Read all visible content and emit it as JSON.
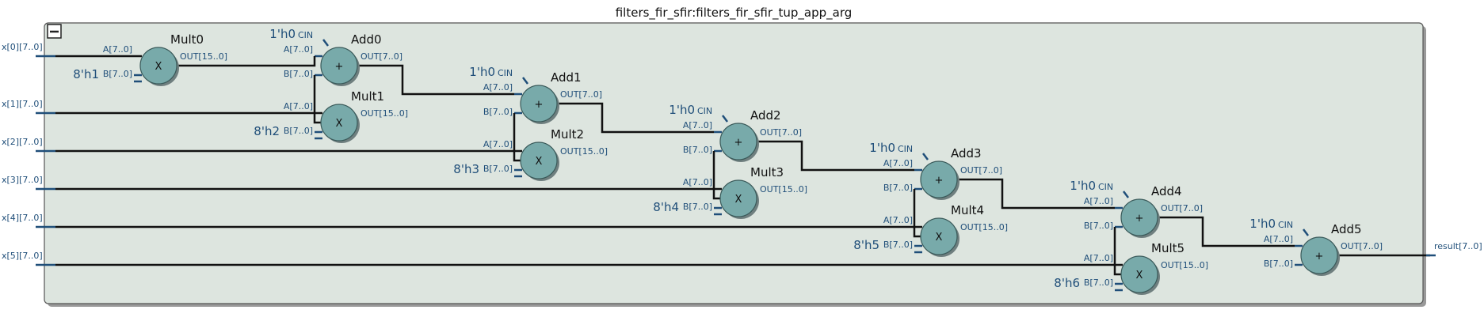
{
  "title": "filters_fir_sfir:filters_fir_sfir_tup_app_arg",
  "collapse_glyph": "−",
  "inputs": [
    "x[0][7..0]",
    "x[1][7..0]",
    "x[2][7..0]",
    "x[3][7..0]",
    "x[4][7..0]",
    "x[5][7..0]"
  ],
  "output": "result[7..0]",
  "mults": [
    {
      "name": "Mult0",
      "const": "8'h1"
    },
    {
      "name": "Mult1",
      "const": "8'h2"
    },
    {
      "name": "Mult2",
      "const": "8'h3"
    },
    {
      "name": "Mult3",
      "const": "8'h4"
    },
    {
      "name": "Mult4",
      "const": "8'h5"
    },
    {
      "name": "Mult5",
      "const": "8'h6"
    }
  ],
  "adders": [
    {
      "name": "Add0",
      "cin": "1'h0"
    },
    {
      "name": "Add1",
      "cin": "1'h0"
    },
    {
      "name": "Add2",
      "cin": "1'h0"
    },
    {
      "name": "Add3",
      "cin": "1'h0"
    },
    {
      "name": "Add4",
      "cin": "1'h0"
    },
    {
      "name": "Add5",
      "cin": "1'h0"
    }
  ],
  "port_labels": {
    "a": "A[7..0]",
    "b": "B[7..0]",
    "mult_out": "OUT[15..0]",
    "add_out": "OUT[7..0]",
    "cin": "CIN"
  },
  "symbols": {
    "mult": "X",
    "add": "+"
  },
  "colors": {
    "block_fill": "#dde5df",
    "block_border": "#555555",
    "node_fill": "#78aaaa",
    "node_border": "#3a5a5a",
    "wire": "#111111",
    "label_blue": "#1f4e79"
  }
}
